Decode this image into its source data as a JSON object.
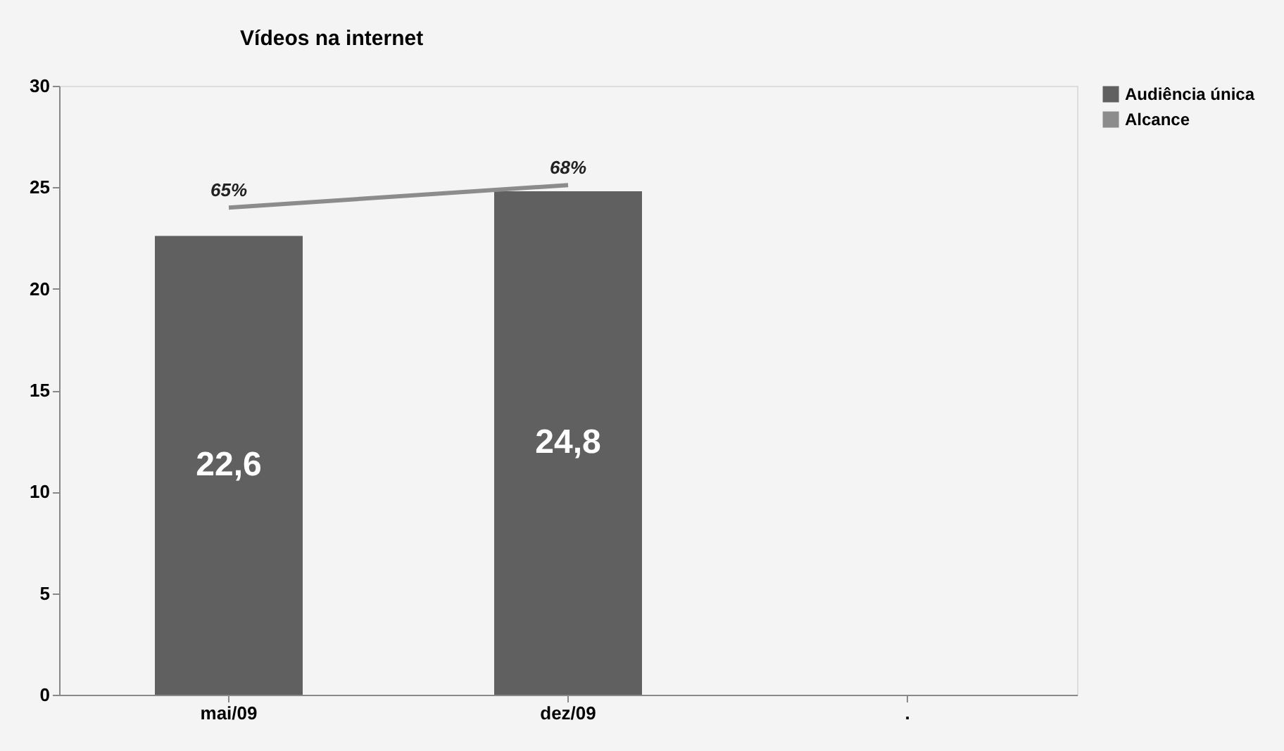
{
  "chart_data": {
    "type": "bar",
    "title": "Vídeos na internet",
    "categories": [
      "mai/09",
      "dez/09",
      "."
    ],
    "series": [
      {
        "name": "Audiência única",
        "color": "#606060",
        "values": [
          22.6,
          24.8,
          null
        ],
        "value_labels": [
          "22,6",
          "24,8",
          null
        ]
      },
      {
        "name": "Alcance",
        "type": "line",
        "axis": "y2",
        "color": "#8c8c8c",
        "values": [
          65,
          68,
          null
        ],
        "value_labels": [
          "65%",
          "68%",
          null
        ]
      }
    ],
    "ylim": [
      0,
      30
    ],
    "yticks": [
      0,
      5,
      10,
      15,
      20,
      25,
      30
    ],
    "y2lim": [
      0,
      81.25
    ],
    "grid": false,
    "legend": "right"
  }
}
